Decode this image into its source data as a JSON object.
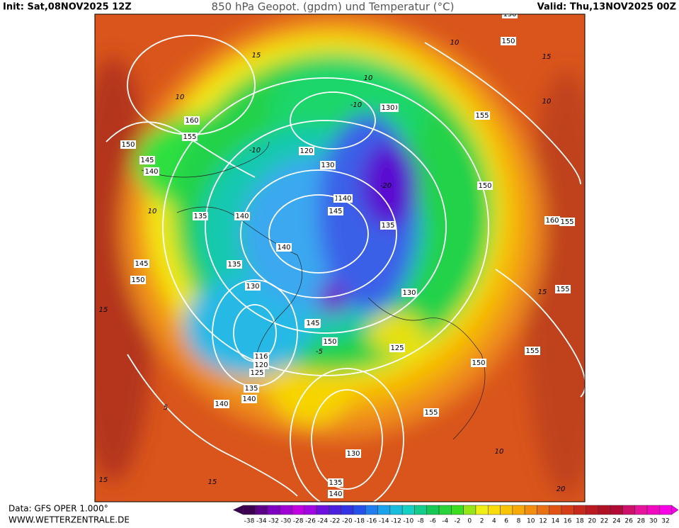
{
  "header": {
    "init": "Init: Sat,08NOV2025 12Z",
    "title": "850 hPa Geopot. (gpdm) und Temperatur (°C)",
    "valid": "Valid: Thu,13NOV2025 00Z"
  },
  "footer": {
    "source": "Data: GFS OPER 1.000°",
    "site": "WWW.WETTERZENTRALE.DE"
  },
  "colorbar": {
    "ticks": [
      -38,
      -34,
      -32,
      -30,
      -28,
      -26,
      -24,
      -22,
      -20,
      -18,
      -16,
      -14,
      -12,
      -10,
      -8,
      -6,
      -4,
      -2,
      0,
      2,
      4,
      6,
      8,
      10,
      12,
      14,
      16,
      18,
      20,
      22,
      24,
      26,
      28,
      30,
      32
    ]
  },
  "map": {
    "geopotential_labels": [
      150,
      160,
      155,
      150,
      145,
      140,
      135,
      140,
      145,
      150,
      140,
      130,
      120,
      130,
      140,
      145,
      135,
      135,
      140,
      130,
      145,
      150,
      116,
      120,
      125,
      135,
      140,
      145,
      130,
      125,
      150,
      155,
      130,
      135,
      140,
      150,
      155,
      150,
      160,
      155,
      155,
      155,
      130,
      140
    ],
    "temperature_labels": [
      15,
      10,
      10,
      15,
      10,
      -10,
      -10,
      -20,
      10,
      -5,
      15,
      15,
      5,
      10,
      15,
      20,
      10,
      15
    ]
  }
}
